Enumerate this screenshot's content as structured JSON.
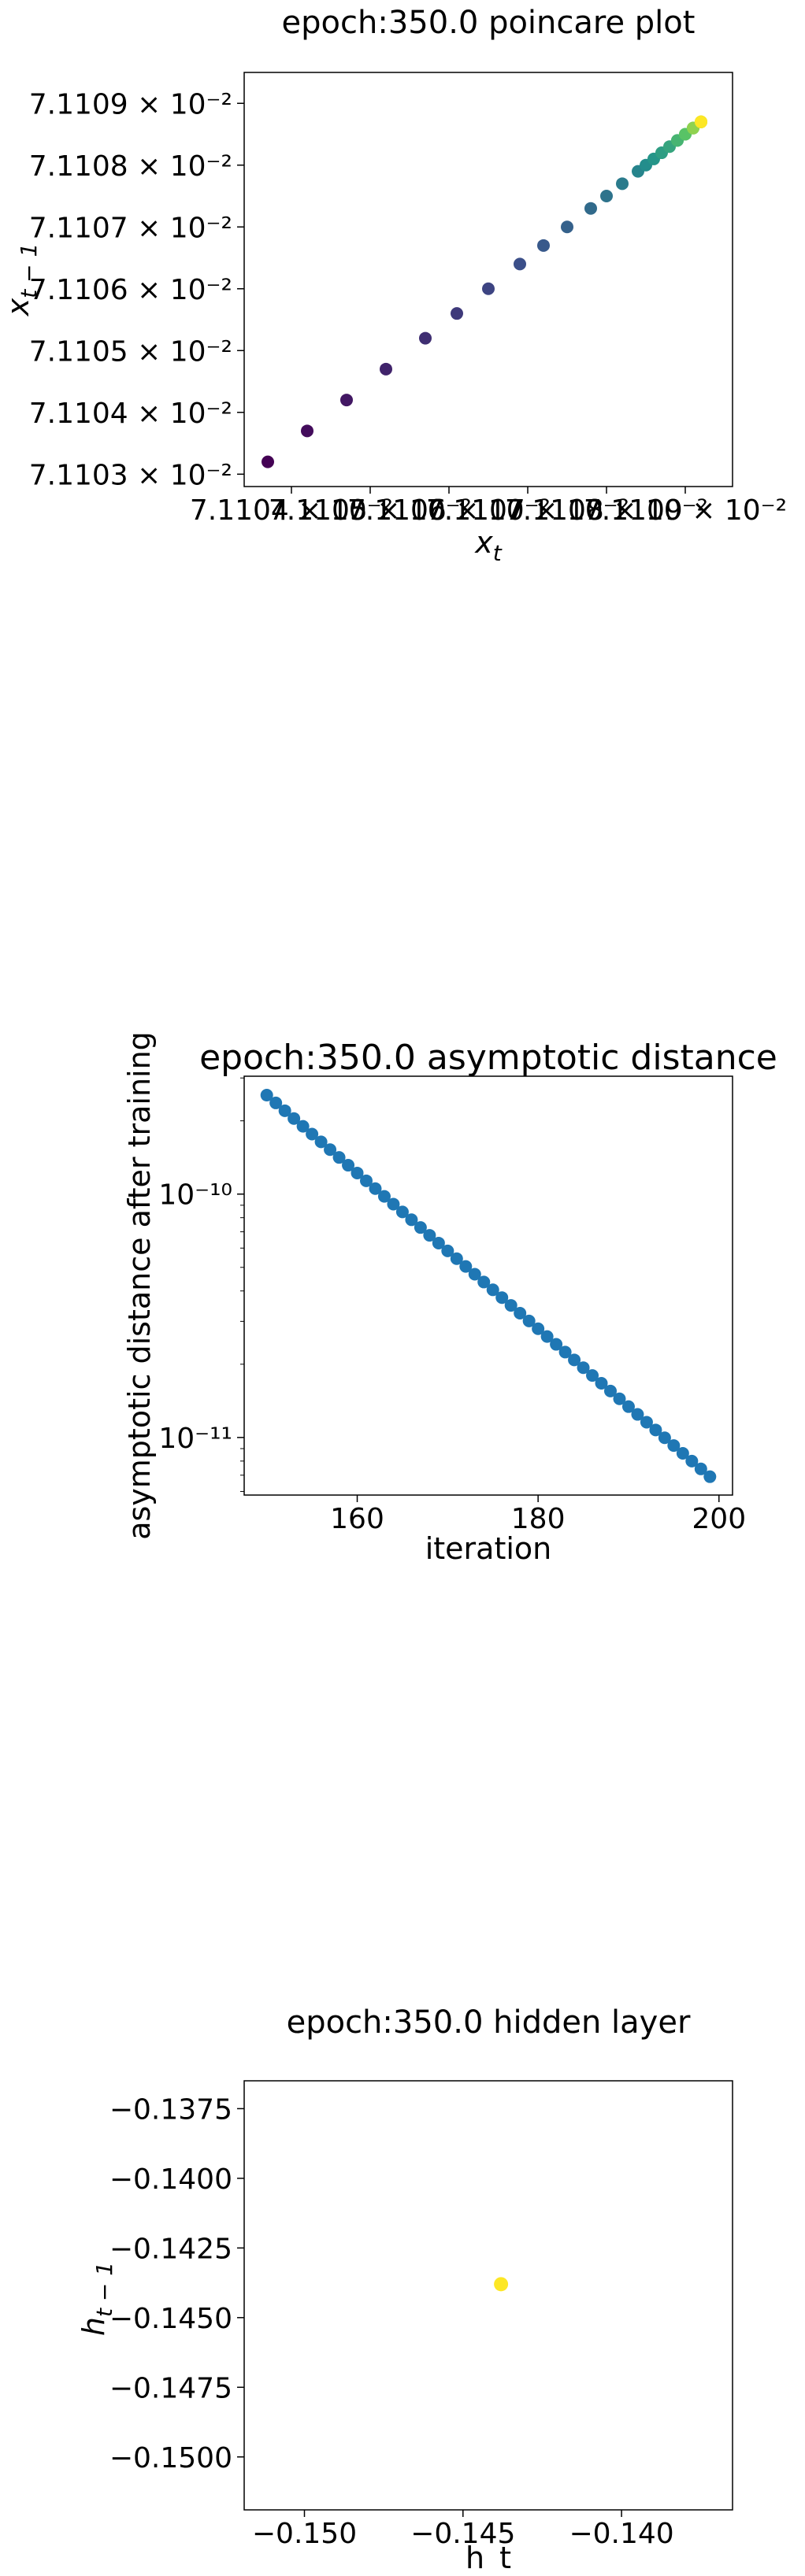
{
  "chart_data": [
    {
      "type": "scatter",
      "title": "epoch:350.0 poincare plot",
      "xlabel": "x_t",
      "ylabel": "x_{t-1}",
      "colormap": "viridis",
      "xlim": [
        0.0711039,
        0.0711101
      ],
      "ylim": [
        0.0711028,
        0.0711095
      ],
      "x_ticks": [
        {
          "value": 0.0711045,
          "label": "7.1104 × 10⁻²"
        },
        {
          "value": 0.0711055,
          "label": "7.1105 × 10⁻²"
        },
        {
          "value": 0.0711065,
          "label": "7.1106 × 10⁻²"
        },
        {
          "value": 0.0711075,
          "label": "7.1107 × 10⁻²"
        },
        {
          "value": 0.0711085,
          "label": "7.1108 × 10⁻²"
        },
        {
          "value": 0.0711095,
          "label": "7.1109 × 10⁻²"
        }
      ],
      "y_ticks": [
        {
          "value": 0.071103,
          "label": "7.1103 × 10⁻²"
        },
        {
          "value": 0.071104,
          "label": "7.1104 × 10⁻²"
        },
        {
          "value": 0.071105,
          "label": "7.1105 × 10⁻²"
        },
        {
          "value": 0.071106,
          "label": "7.1106 × 10⁻²"
        },
        {
          "value": 0.071107,
          "label": "7.1107 × 10⁻²"
        },
        {
          "value": 0.071108,
          "label": "7.1108 × 10⁻²"
        },
        {
          "value": 0.071109,
          "label": "7.1109 × 10⁻²"
        }
      ],
      "points": {
        "x": [
          0.0711042,
          0.0711047,
          0.0711052,
          0.0711057,
          0.0711062,
          0.0711066,
          0.071107,
          0.0711074,
          0.0711077,
          0.071108,
          0.0711083,
          0.0711085,
          0.0711087,
          0.0711089,
          0.071109,
          0.0711091,
          0.0711092,
          0.0711093,
          0.0711094,
          0.0711094,
          0.0711095,
          0.0711095,
          0.0711096,
          0.0711096,
          0.0711096,
          0.0711097,
          0.0711097,
          0.0711097,
          0.0711097,
          0.0711097
        ],
        "y": [
          0.0711032,
          0.0711037,
          0.0711042,
          0.0711047,
          0.0711052,
          0.0711056,
          0.071106,
          0.0711064,
          0.0711067,
          0.071107,
          0.0711073,
          0.0711075,
          0.0711077,
          0.0711079,
          0.071108,
          0.0711081,
          0.0711082,
          0.0711083,
          0.0711084,
          0.0711084,
          0.0711085,
          0.0711085,
          0.0711086,
          0.0711086,
          0.0711086,
          0.0711087,
          0.0711087,
          0.0711087,
          0.0711087,
          0.0711087
        ]
      }
    },
    {
      "type": "scatter",
      "title": "epoch:350.0 asymptotic distance",
      "xlabel": "iteration",
      "ylabel": "asymptotic distance after training",
      "color": "#1f77b4",
      "yscale": "log",
      "xlim": [
        147.5,
        201.5
      ],
      "ylim": [
        5.8e-12,
        3.05e-10
      ],
      "x_ticks": [
        160,
        180,
        200
      ],
      "y_ticks": [
        {
          "value": 1e-10,
          "label": "10⁻¹⁰"
        },
        {
          "value": 1e-11,
          "label": "10⁻¹¹"
        }
      ],
      "points": {
        "x_start": 150,
        "x_end": 199,
        "y_start": 2.55e-10,
        "y_end": 6.9e-12
      }
    },
    {
      "type": "scatter",
      "title": "epoch:350.0 hidden layer",
      "xlabel": "h_t",
      "ylabel": "h_{t-1}",
      "color": "#fde725",
      "xlim": [
        -0.1519,
        -0.1365
      ],
      "ylim": [
        -0.1519,
        -0.1365
      ],
      "x_ticks": [
        {
          "value": -0.15,
          "label": "−0.150"
        },
        {
          "value": -0.145,
          "label": "−0.145"
        },
        {
          "value": -0.14,
          "label": "−0.140"
        }
      ],
      "y_ticks": [
        {
          "value": -0.1375,
          "label": "−0.1375"
        },
        {
          "value": -0.14,
          "label": "−0.1400"
        },
        {
          "value": -0.1425,
          "label": "−0.1425"
        },
        {
          "value": -0.145,
          "label": "−0.1450"
        },
        {
          "value": -0.1475,
          "label": "−0.1475"
        },
        {
          "value": -0.15,
          "label": "−0.1500"
        }
      ],
      "points": {
        "x": [
          -0.1438
        ],
        "y": [
          -0.1438
        ]
      }
    }
  ]
}
